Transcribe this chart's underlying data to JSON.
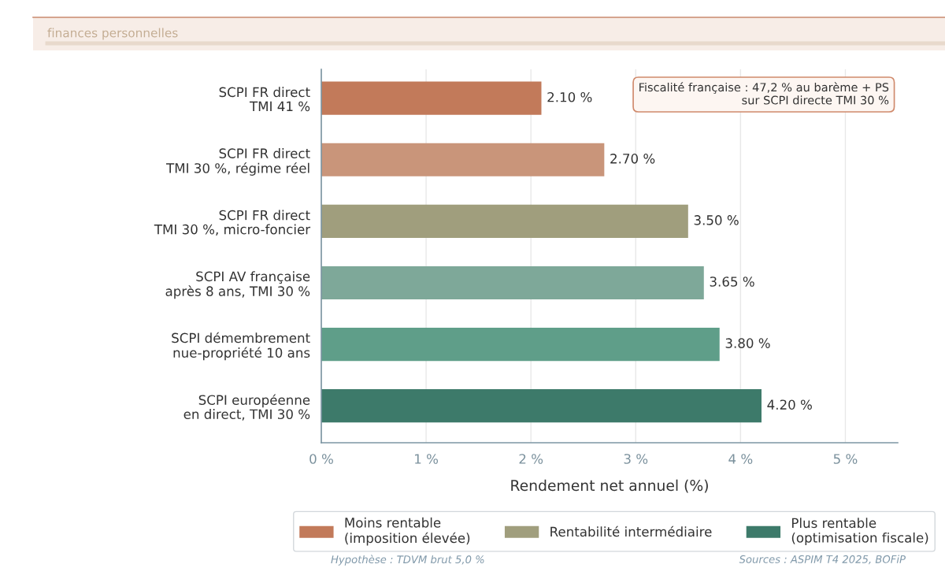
{
  "chart_data": {
    "type": "bar",
    "orientation": "horizontal",
    "stacked": true,
    "subtitle": "finances personnelles",
    "categories": [
      "SCPI FR direct\nTMI 41 %",
      "SCPI FR direct\nTMI 30 %, régime réel",
      "SCPI FR direct\nTMI 30 %, micro-foncier",
      "SCPI AV française\naprès 8 ans, TMI 30 %",
      "SCPI démembrement\nnue-propriété 10 ans",
      "SCPI européenne\nen direct, TMI 30 %"
    ],
    "series": [
      {
        "name": "Moins rentable\n(imposition élevée)",
        "color": "#c27a5a",
        "values": [
          2.1,
          2.7,
          null,
          null,
          null,
          null
        ],
        "colors": [
          "#c27a5a",
          "#c9957a",
          null,
          null,
          null,
          null
        ],
        "value_labels": [
          "2.10 %",
          "2.70 %",
          null,
          null,
          null,
          null
        ]
      },
      {
        "name": "Rentabilité intermédiaire",
        "color": "#a09e7d",
        "values": [
          null,
          null,
          3.5,
          3.65,
          null,
          null
        ],
        "colors": [
          null,
          null,
          "#a09e7d",
          "#7ea899",
          null,
          null
        ],
        "value_labels": [
          null,
          null,
          "3.50 %",
          "3.65 %",
          null,
          null
        ]
      },
      {
        "name": "Plus rentable\n(optimisation fiscale)",
        "color": "#3d7a6a",
        "values": [
          null,
          null,
          null,
          null,
          3.8,
          4.2
        ],
        "colors": [
          null,
          null,
          null,
          null,
          "#5f9e89",
          "#3d7a6a"
        ],
        "value_labels": [
          null,
          null,
          null,
          null,
          "3.80 %",
          "4.20 %"
        ]
      }
    ],
    "xlabel": "Rendement net annuel (%)",
    "xlim": [
      0,
      5.5
    ],
    "xticks": [
      {
        "value": 0,
        "label": "0 %"
      },
      {
        "value": 1,
        "label": "1 %"
      },
      {
        "value": 2,
        "label": "2 %"
      },
      {
        "value": 3,
        "label": "3 %"
      },
      {
        "value": 4,
        "label": "4 %"
      },
      {
        "value": 5,
        "label": "5 %"
      }
    ],
    "grid": "x",
    "legend": "bottom",
    "annotations": [
      "Fiscalité française : 47,2 % au barème + PS\nsur SCPI directe TMI 30 %",
      "Hypothèse : TDVM brut 5,0 %",
      "Sources : ASPIM T4 2025, BOFiP"
    ]
  }
}
